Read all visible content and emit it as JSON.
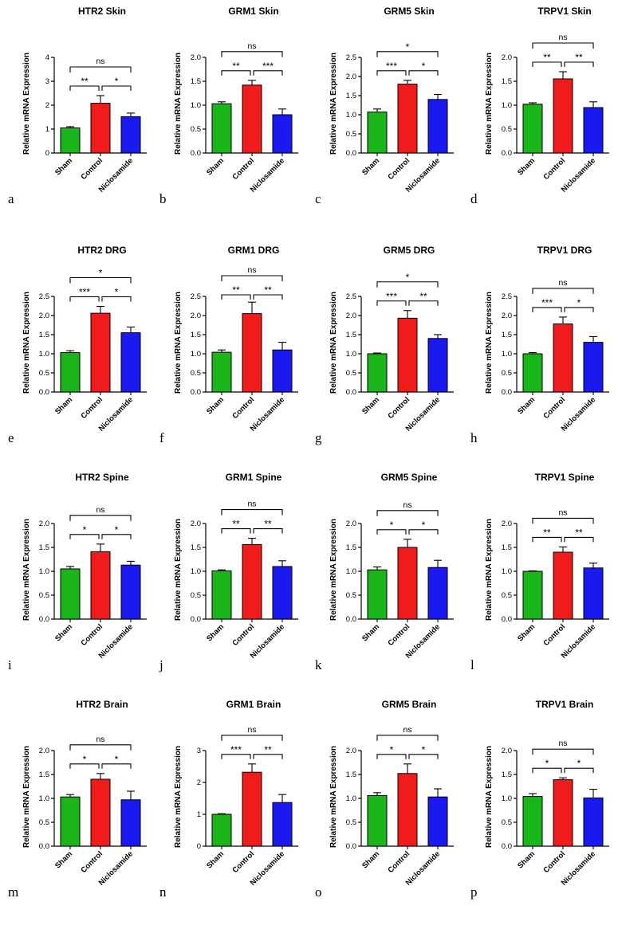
{
  "figure": {
    "categories": [
      "Sham",
      "Control",
      "Niclosamide"
    ],
    "colors": {
      "Sham": "#19b51b",
      "Control": "#f01c1c",
      "Niclosamide": "#1a1af0"
    },
    "ylabel": "Relative mRNA Expression"
  },
  "chart_data": [
    {
      "letter": "a",
      "type": "bar",
      "title": "HTR2 Skin",
      "ylabel": "Relative mRNA Expression",
      "categories": [
        "Sham",
        "Control",
        "Niclosamide"
      ],
      "values": [
        1.05,
        2.08,
        1.52
      ],
      "errors": [
        0.05,
        0.32,
        0.15
      ],
      "ylim": [
        0,
        4
      ],
      "ticks": [
        0,
        1,
        2,
        3,
        4
      ],
      "tick_labels": [
        "0",
        "1",
        "2",
        "3",
        "4"
      ],
      "significance": {
        "sham_control": "**",
        "control_niclosamide": "*",
        "sham_niclosamide": "ns"
      }
    },
    {
      "letter": "b",
      "type": "bar",
      "title": "GRM1 Skin",
      "ylabel": "Relative mRNA Expression",
      "categories": [
        "Sham",
        "Control",
        "Niclosamide"
      ],
      "values": [
        1.03,
        1.42,
        0.8
      ],
      "errors": [
        0.04,
        0.1,
        0.12
      ],
      "ylim": [
        0,
        2.0
      ],
      "ticks": [
        0,
        0.5,
        1,
        1.5,
        2
      ],
      "tick_labels": [
        "0.0",
        "0.5",
        "1.0",
        "1.5",
        "2.0"
      ],
      "significance": {
        "sham_control": "**",
        "control_niclosamide": "***",
        "sham_niclosamide": "ns"
      }
    },
    {
      "letter": "c",
      "type": "bar",
      "title": "GRM5 Skin",
      "ylabel": "Relative mRNA Expression",
      "categories": [
        "Sham",
        "Control",
        "Niclosamide"
      ],
      "values": [
        1.07,
        1.8,
        1.4
      ],
      "errors": [
        0.08,
        0.1,
        0.13
      ],
      "ylim": [
        0,
        2.5
      ],
      "ticks": [
        0,
        0.5,
        1,
        1.5,
        2,
        2.5
      ],
      "tick_labels": [
        "0.0",
        "0.5",
        "1.0",
        "1.5",
        "2.0",
        "2.5"
      ],
      "significance": {
        "sham_control": "***",
        "control_niclosamide": "*",
        "sham_niclosamide": "*"
      }
    },
    {
      "letter": "d",
      "type": "bar",
      "title": "TRPV1 Skin",
      "ylabel": "Relative mRNA Expression",
      "categories": [
        "Sham",
        "Control",
        "Niclosamide"
      ],
      "values": [
        1.02,
        1.55,
        0.95
      ],
      "errors": [
        0.03,
        0.15,
        0.12
      ],
      "ylim": [
        0,
        2.0
      ],
      "ticks": [
        0,
        0.5,
        1,
        1.5,
        2
      ],
      "tick_labels": [
        "0.0",
        "0.5",
        "1.0",
        "1.5",
        "2.0"
      ],
      "significance": {
        "sham_control": "**",
        "control_niclosamide": "**",
        "sham_niclosamide": "ns"
      }
    },
    {
      "letter": "e",
      "type": "bar",
      "title": "HTR2 DRG",
      "ylabel": "Relative mRNA Expression",
      "categories": [
        "Sham",
        "Control",
        "Niclosamide"
      ],
      "values": [
        1.03,
        2.06,
        1.55
      ],
      "errors": [
        0.05,
        0.18,
        0.15
      ],
      "ylim": [
        0,
        2.5
      ],
      "ticks": [
        0,
        0.5,
        1,
        1.5,
        2,
        2.5
      ],
      "tick_labels": [
        "0.0",
        "0.5",
        "1.0",
        "1.5",
        "2.0",
        "2.5"
      ],
      "significance": {
        "sham_control": "***",
        "control_niclosamide": "*",
        "sham_niclosamide": "*"
      }
    },
    {
      "letter": "f",
      "type": "bar",
      "title": "GRM1 DRG",
      "ylabel": "Relative mRNA Expression",
      "categories": [
        "Sham",
        "Control",
        "Niclosamide"
      ],
      "values": [
        1.04,
        2.05,
        1.1
      ],
      "errors": [
        0.06,
        0.3,
        0.2
      ],
      "ylim": [
        0,
        2.5
      ],
      "ticks": [
        0,
        0.5,
        1,
        1.5,
        2,
        2.5
      ],
      "tick_labels": [
        "0.0",
        "0.5",
        "1.0",
        "1.5",
        "2.0",
        "2.5"
      ],
      "significance": {
        "sham_control": "**",
        "control_niclosamide": "**",
        "sham_niclosamide": "ns"
      }
    },
    {
      "letter": "g",
      "type": "bar",
      "title": "GRM5 DRG",
      "ylabel": "Relative mRNA Expression",
      "categories": [
        "Sham",
        "Control",
        "Niclosamide"
      ],
      "values": [
        1.0,
        1.93,
        1.4
      ],
      "errors": [
        0.02,
        0.2,
        0.1
      ],
      "ylim": [
        0,
        2.5
      ],
      "ticks": [
        0,
        0.5,
        1,
        1.5,
        2,
        2.5
      ],
      "tick_labels": [
        "0.0",
        "0.5",
        "1.0",
        "1.5",
        "2.0",
        "2.5"
      ],
      "significance": {
        "sham_control": "***",
        "control_niclosamide": "**",
        "sham_niclosamide": "*"
      }
    },
    {
      "letter": "h",
      "type": "bar",
      "title": "TRPV1 DRG",
      "ylabel": "Relative mRNA Expression",
      "categories": [
        "Sham",
        "Control",
        "Niclosamide"
      ],
      "values": [
        1.0,
        1.78,
        1.3
      ],
      "errors": [
        0.03,
        0.18,
        0.15
      ],
      "ylim": [
        0,
        2.5
      ],
      "ticks": [
        0,
        0.5,
        1,
        1.5,
        2,
        2.5
      ],
      "tick_labels": [
        "0.0",
        "0.5",
        "1.0",
        "1.5",
        "2.0",
        "2.5"
      ],
      "significance": {
        "sham_control": "***",
        "control_niclosamide": "*",
        "sham_niclosamide": "ns"
      }
    },
    {
      "letter": "i",
      "type": "bar",
      "title": "HTR2 Spine",
      "ylabel": "Relative mRNA Expression",
      "categories": [
        "Sham",
        "Control",
        "Niclosamide"
      ],
      "values": [
        1.05,
        1.41,
        1.13
      ],
      "errors": [
        0.05,
        0.16,
        0.08
      ],
      "ylim": [
        0,
        2.0
      ],
      "ticks": [
        0,
        0.5,
        1,
        1.5,
        2
      ],
      "tick_labels": [
        "0.0",
        "0.5",
        "1.0",
        "1.5",
        "2.0"
      ],
      "significance": {
        "sham_control": "*",
        "control_niclosamide": "*",
        "sham_niclosamide": "ns"
      }
    },
    {
      "letter": "j",
      "type": "bar",
      "title": "GRM1 Spine",
      "ylabel": "Relative mRNA Expression",
      "categories": [
        "Sham",
        "Control",
        "Niclosamide"
      ],
      "values": [
        1.01,
        1.56,
        1.1
      ],
      "errors": [
        0.02,
        0.13,
        0.12
      ],
      "ylim": [
        0,
        2.0
      ],
      "ticks": [
        0,
        0.5,
        1,
        1.5,
        2
      ],
      "tick_labels": [
        "0.0",
        "0.5",
        "1.0",
        "1.5",
        "2.0"
      ],
      "significance": {
        "sham_control": "**",
        "control_niclosamide": "**",
        "sham_niclosamide": "ns"
      }
    },
    {
      "letter": "k",
      "type": "bar",
      "title": "GRM5 Spine",
      "ylabel": "Relative mRNA Expression",
      "categories": [
        "Sham",
        "Control",
        "Niclosamide"
      ],
      "values": [
        1.03,
        1.5,
        1.08
      ],
      "errors": [
        0.06,
        0.17,
        0.15
      ],
      "ylim": [
        0,
        2.0
      ],
      "ticks": [
        0,
        0.5,
        1,
        1.5,
        2
      ],
      "tick_labels": [
        "0.0",
        "0.5",
        "1.0",
        "1.5",
        "2.0"
      ],
      "significance": {
        "sham_control": "*",
        "control_niclosamide": "*",
        "sham_niclosamide": "ns"
      }
    },
    {
      "letter": "l",
      "type": "bar",
      "title": "TRPV1 Spine",
      "ylabel": "Relative mRNA Expression",
      "categories": [
        "Sham",
        "Control",
        "Niclosamide"
      ],
      "values": [
        1.0,
        1.4,
        1.07
      ],
      "errors": [
        0.01,
        0.11,
        0.1
      ],
      "ylim": [
        0,
        2.0
      ],
      "ticks": [
        0,
        0.5,
        1,
        1.5,
        2
      ],
      "tick_labels": [
        "0.0",
        "0.5",
        "1.0",
        "1.5",
        "2.0"
      ],
      "significance": {
        "sham_control": "**",
        "control_niclosamide": "**",
        "sham_niclosamide": "ns"
      }
    },
    {
      "letter": "m",
      "type": "bar",
      "title": "HTR2 Brain",
      "ylabel": "Relative mRNA Expression",
      "categories": [
        "Sham",
        "Control",
        "Niclosamide"
      ],
      "values": [
        1.03,
        1.4,
        0.97
      ],
      "errors": [
        0.05,
        0.12,
        0.18
      ],
      "ylim": [
        0,
        2.0
      ],
      "ticks": [
        0,
        0.5,
        1,
        1.5,
        2
      ],
      "tick_labels": [
        "0.0",
        "0.5",
        "1.0",
        "1.5",
        "2.0"
      ],
      "significance": {
        "sham_control": "*",
        "control_niclosamide": "*",
        "sham_niclosamide": "ns"
      }
    },
    {
      "letter": "n",
      "type": "bar",
      "title": "GRM1 Brain",
      "ylabel": "Relative mRNA Expression",
      "categories": [
        "Sham",
        "Control",
        "Niclosamide"
      ],
      "values": [
        1.0,
        2.32,
        1.37
      ],
      "errors": [
        0.02,
        0.26,
        0.25
      ],
      "ylim": [
        0,
        3
      ],
      "ticks": [
        0,
        1,
        2,
        3
      ],
      "tick_labels": [
        "0",
        "1",
        "2",
        "3"
      ],
      "significance": {
        "sham_control": "***",
        "control_niclosamide": "**",
        "sham_niclosamide": "ns"
      }
    },
    {
      "letter": "o",
      "type": "bar",
      "title": "GRM5 Brain",
      "ylabel": "Relative mRNA Expression",
      "categories": [
        "Sham",
        "Control",
        "Niclosamide"
      ],
      "values": [
        1.06,
        1.52,
        1.03
      ],
      "errors": [
        0.06,
        0.2,
        0.17
      ],
      "ylim": [
        0,
        2.0
      ],
      "ticks": [
        0,
        0.5,
        1,
        1.5,
        2
      ],
      "tick_labels": [
        "0.0",
        "0.5",
        "1.0",
        "1.5",
        "2.0"
      ],
      "significance": {
        "sham_control": "*",
        "control_niclosamide": "*",
        "sham_niclosamide": "ns"
      }
    },
    {
      "letter": "p",
      "type": "bar",
      "title": "TRPV1 Brain",
      "ylabel": "Relative mRNA Expression",
      "categories": [
        "Sham",
        "Control",
        "Niclosamide"
      ],
      "values": [
        1.04,
        1.39,
        1.01
      ],
      "errors": [
        0.06,
        0.04,
        0.18
      ],
      "ylim": [
        0,
        2.0
      ],
      "ticks": [
        0,
        0.5,
        1,
        1.5,
        2
      ],
      "tick_labels": [
        "0.0",
        "0.5",
        "1.0",
        "1.5",
        "2.0"
      ],
      "significance": {
        "sham_control": "*",
        "control_niclosamide": "*",
        "sham_niclosamide": "ns"
      }
    }
  ]
}
